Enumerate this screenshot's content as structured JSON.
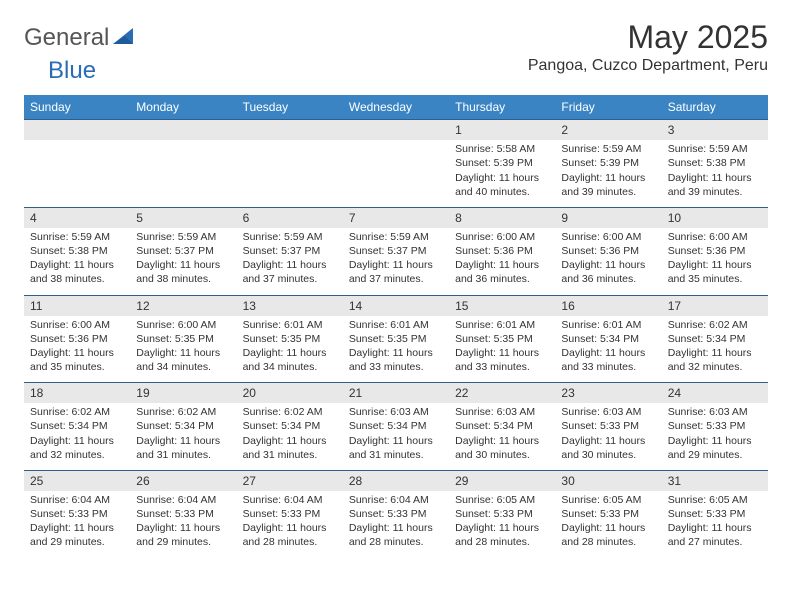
{
  "brand": {
    "general": "General",
    "blue": "Blue"
  },
  "title": "May 2025",
  "location": "Pangoa, Cuzco Department, Peru",
  "colors": {
    "header_bg": "#3b84c4",
    "header_text": "#ffffff",
    "daynum_bg": "#e8e8e8",
    "border_dark": "#2f5f8a",
    "text": "#333333",
    "brand_gray": "#555555",
    "brand_blue": "#2a6db5"
  },
  "fonts": {
    "base_family": "Arial",
    "title_size_pt": 24,
    "location_size_pt": 12,
    "dow_size_pt": 9,
    "cell_size_pt": 8
  },
  "days_of_week": [
    "Sunday",
    "Monday",
    "Tuesday",
    "Wednesday",
    "Thursday",
    "Friday",
    "Saturday"
  ],
  "weeks": [
    {
      "nums": [
        "",
        "",
        "",
        "",
        "1",
        "2",
        "3"
      ],
      "cells": [
        null,
        null,
        null,
        null,
        {
          "sunrise": "5:58 AM",
          "sunset": "5:39 PM",
          "dl1": "Daylight: 11 hours",
          "dl2": "and 40 minutes."
        },
        {
          "sunrise": "5:59 AM",
          "sunset": "5:39 PM",
          "dl1": "Daylight: 11 hours",
          "dl2": "and 39 minutes."
        },
        {
          "sunrise": "5:59 AM",
          "sunset": "5:38 PM",
          "dl1": "Daylight: 11 hours",
          "dl2": "and 39 minutes."
        }
      ]
    },
    {
      "nums": [
        "4",
        "5",
        "6",
        "7",
        "8",
        "9",
        "10"
      ],
      "cells": [
        {
          "sunrise": "5:59 AM",
          "sunset": "5:38 PM",
          "dl1": "Daylight: 11 hours",
          "dl2": "and 38 minutes."
        },
        {
          "sunrise": "5:59 AM",
          "sunset": "5:37 PM",
          "dl1": "Daylight: 11 hours",
          "dl2": "and 38 minutes."
        },
        {
          "sunrise": "5:59 AM",
          "sunset": "5:37 PM",
          "dl1": "Daylight: 11 hours",
          "dl2": "and 37 minutes."
        },
        {
          "sunrise": "5:59 AM",
          "sunset": "5:37 PM",
          "dl1": "Daylight: 11 hours",
          "dl2": "and 37 minutes."
        },
        {
          "sunrise": "6:00 AM",
          "sunset": "5:36 PM",
          "dl1": "Daylight: 11 hours",
          "dl2": "and 36 minutes."
        },
        {
          "sunrise": "6:00 AM",
          "sunset": "5:36 PM",
          "dl1": "Daylight: 11 hours",
          "dl2": "and 36 minutes."
        },
        {
          "sunrise": "6:00 AM",
          "sunset": "5:36 PM",
          "dl1": "Daylight: 11 hours",
          "dl2": "and 35 minutes."
        }
      ]
    },
    {
      "nums": [
        "11",
        "12",
        "13",
        "14",
        "15",
        "16",
        "17"
      ],
      "cells": [
        {
          "sunrise": "6:00 AM",
          "sunset": "5:36 PM",
          "dl1": "Daylight: 11 hours",
          "dl2": "and 35 minutes."
        },
        {
          "sunrise": "6:00 AM",
          "sunset": "5:35 PM",
          "dl1": "Daylight: 11 hours",
          "dl2": "and 34 minutes."
        },
        {
          "sunrise": "6:01 AM",
          "sunset": "5:35 PM",
          "dl1": "Daylight: 11 hours",
          "dl2": "and 34 minutes."
        },
        {
          "sunrise": "6:01 AM",
          "sunset": "5:35 PM",
          "dl1": "Daylight: 11 hours",
          "dl2": "and 33 minutes."
        },
        {
          "sunrise": "6:01 AM",
          "sunset": "5:35 PM",
          "dl1": "Daylight: 11 hours",
          "dl2": "and 33 minutes."
        },
        {
          "sunrise": "6:01 AM",
          "sunset": "5:34 PM",
          "dl1": "Daylight: 11 hours",
          "dl2": "and 33 minutes."
        },
        {
          "sunrise": "6:02 AM",
          "sunset": "5:34 PM",
          "dl1": "Daylight: 11 hours",
          "dl2": "and 32 minutes."
        }
      ]
    },
    {
      "nums": [
        "18",
        "19",
        "20",
        "21",
        "22",
        "23",
        "24"
      ],
      "cells": [
        {
          "sunrise": "6:02 AM",
          "sunset": "5:34 PM",
          "dl1": "Daylight: 11 hours",
          "dl2": "and 32 minutes."
        },
        {
          "sunrise": "6:02 AM",
          "sunset": "5:34 PM",
          "dl1": "Daylight: 11 hours",
          "dl2": "and 31 minutes."
        },
        {
          "sunrise": "6:02 AM",
          "sunset": "5:34 PM",
          "dl1": "Daylight: 11 hours",
          "dl2": "and 31 minutes."
        },
        {
          "sunrise": "6:03 AM",
          "sunset": "5:34 PM",
          "dl1": "Daylight: 11 hours",
          "dl2": "and 31 minutes."
        },
        {
          "sunrise": "6:03 AM",
          "sunset": "5:34 PM",
          "dl1": "Daylight: 11 hours",
          "dl2": "and 30 minutes."
        },
        {
          "sunrise": "6:03 AM",
          "sunset": "5:33 PM",
          "dl1": "Daylight: 11 hours",
          "dl2": "and 30 minutes."
        },
        {
          "sunrise": "6:03 AM",
          "sunset": "5:33 PM",
          "dl1": "Daylight: 11 hours",
          "dl2": "and 29 minutes."
        }
      ]
    },
    {
      "nums": [
        "25",
        "26",
        "27",
        "28",
        "29",
        "30",
        "31"
      ],
      "cells": [
        {
          "sunrise": "6:04 AM",
          "sunset": "5:33 PM",
          "dl1": "Daylight: 11 hours",
          "dl2": "and 29 minutes."
        },
        {
          "sunrise": "6:04 AM",
          "sunset": "5:33 PM",
          "dl1": "Daylight: 11 hours",
          "dl2": "and 29 minutes."
        },
        {
          "sunrise": "6:04 AM",
          "sunset": "5:33 PM",
          "dl1": "Daylight: 11 hours",
          "dl2": "and 28 minutes."
        },
        {
          "sunrise": "6:04 AM",
          "sunset": "5:33 PM",
          "dl1": "Daylight: 11 hours",
          "dl2": "and 28 minutes."
        },
        {
          "sunrise": "6:05 AM",
          "sunset": "5:33 PM",
          "dl1": "Daylight: 11 hours",
          "dl2": "and 28 minutes."
        },
        {
          "sunrise": "6:05 AM",
          "sunset": "5:33 PM",
          "dl1": "Daylight: 11 hours",
          "dl2": "and 28 minutes."
        },
        {
          "sunrise": "6:05 AM",
          "sunset": "5:33 PM",
          "dl1": "Daylight: 11 hours",
          "dl2": "and 27 minutes."
        }
      ]
    }
  ],
  "labels": {
    "sunrise_prefix": "Sunrise: ",
    "sunset_prefix": "Sunset: "
  }
}
